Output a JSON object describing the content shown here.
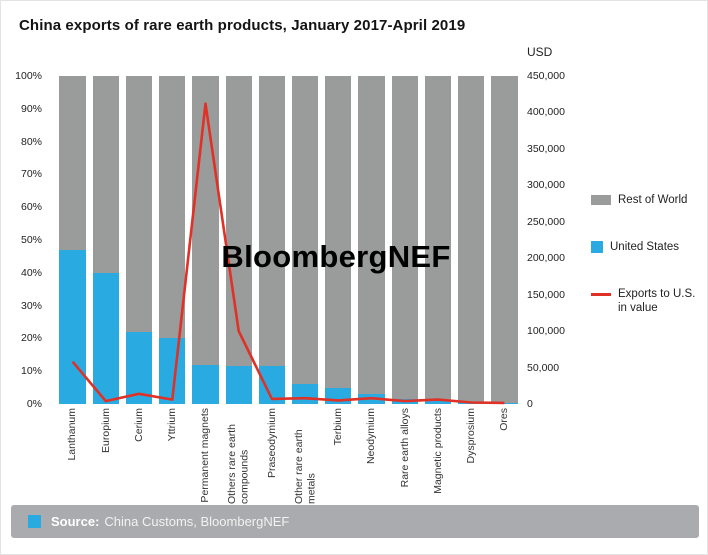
{
  "title": "China exports of rare earth products, January 2017-April 2019",
  "watermark": "BloombergNEF",
  "colors": {
    "rest_of_world": "#9a9b9b",
    "united_states": "#29abe2",
    "exports_line": "#e03127",
    "footer_bg": "#a9abae",
    "accent_square": "#29abe2"
  },
  "legend": [
    {
      "label": "Rest of World"
    },
    {
      "label": "United States"
    },
    {
      "label": "Exports to U.S.\nin value"
    }
  ],
  "footer": {
    "source_prefix": "Source:",
    "source_text": "China Customs, BloombergNEF"
  },
  "chart_data": {
    "type": "bar",
    "subtype": "stacked-percent-with-line",
    "categories": [
      "Lanthanum",
      "Europium",
      "Cerium",
      "Yttrium",
      "Permanent magnets",
      "Others rare earth compounds",
      "Praseodymium",
      "Other rare earth metals",
      "Terbium",
      "Neodymium",
      "Rare earth alloys",
      "Magnetic products",
      "Dysprosium",
      "Ores"
    ],
    "series": [
      {
        "name": "United States",
        "type": "bar",
        "axis": "left",
        "unit": "%",
        "values": [
          47,
          40,
          22,
          20,
          12,
          11.5,
          11.5,
          6,
          5,
          3,
          1.5,
          1,
          0.5,
          0.2
        ]
      },
      {
        "name": "Rest of World",
        "type": "bar",
        "axis": "left",
        "unit": "%",
        "values": [
          53,
          60,
          78,
          80,
          88,
          88.5,
          88.5,
          94,
          95,
          97,
          98.5,
          99,
          99.5,
          99.8
        ]
      },
      {
        "name": "Exports to U.S. in value",
        "type": "line",
        "axis": "right",
        "unit": "USD",
        "values": [
          58000,
          4000,
          14000,
          6000,
          412000,
          100000,
          7000,
          8000,
          5000,
          8000,
          4000,
          6000,
          2000,
          1500
        ]
      }
    ],
    "left_axis": {
      "min": 0,
      "max": 100,
      "ticks": [
        "100%",
        "90%",
        "80%",
        "70%",
        "60%",
        "50%",
        "40%",
        "30%",
        "20%",
        "10%",
        "0%"
      ]
    },
    "right_axis": {
      "min": 0,
      "max": 450000,
      "label": "USD",
      "ticks": [
        "450,000",
        "400,000",
        "350,000",
        "300,000",
        "250,000",
        "200,000",
        "150,000",
        "100,000",
        "50,000",
        "0"
      ]
    },
    "grid": false,
    "legend_position": "right"
  }
}
